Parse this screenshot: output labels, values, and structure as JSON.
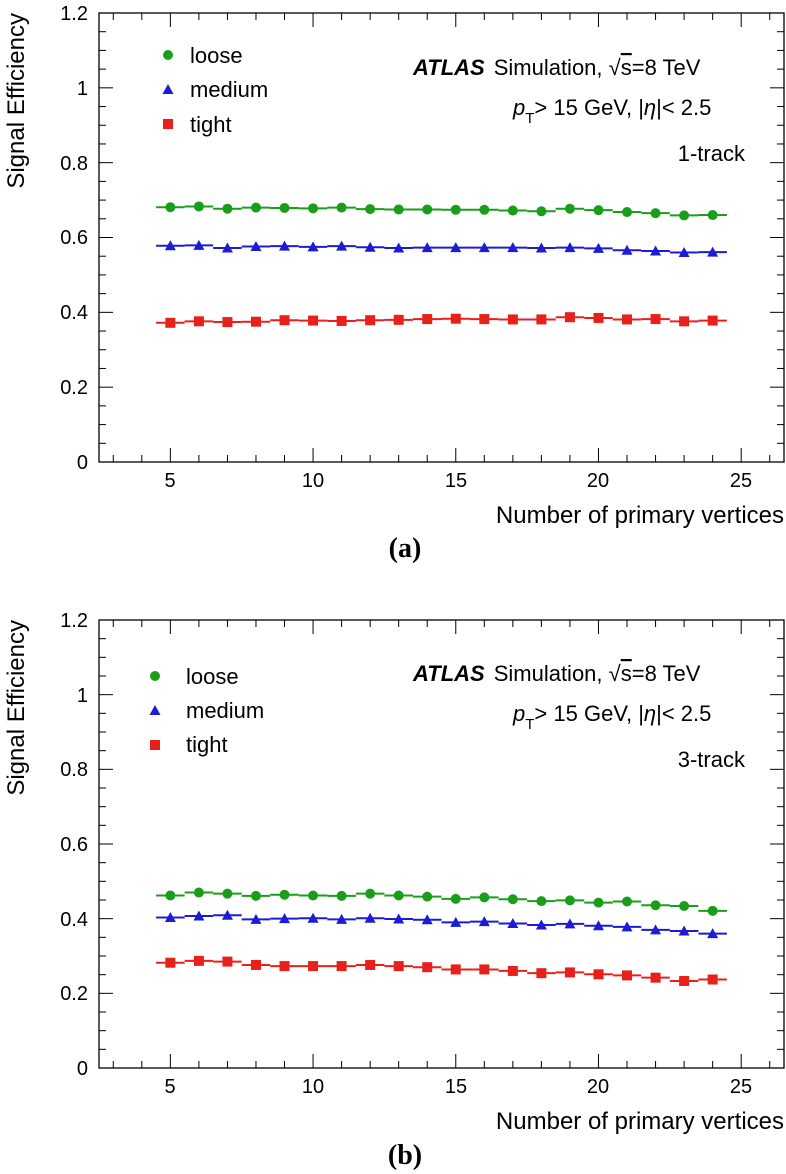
{
  "colors": {
    "loose": "#1a9e1a",
    "medium": "#1c1cd4",
    "tight": "#e8201c",
    "axis": "#000000"
  },
  "chart_data": [
    {
      "type": "line",
      "panel_label": "(a)",
      "xlabel": "Number of primary vertices",
      "ylabel": "Signal Efficiency",
      "xlim": [
        2.5,
        26.5
      ],
      "ylim": [
        0,
        1.2
      ],
      "xticks": [
        "5",
        "10",
        "15",
        "20",
        "25"
      ],
      "yticks": [
        "0",
        "0.2",
        "0.4",
        "0.6",
        "0.8",
        "1",
        "1.2"
      ],
      "annotation": {
        "experiment": "ATLAS",
        "simulation": "Simulation, ",
        "sqrt_s": "s",
        "energy": "=8 TeV",
        "pt_symbol": "p",
        "pt_subscript": "T",
        "cut": "> 15 GeV, |",
        "eta": "η",
        "eta_cut": "|< 2.5",
        "category": "1-track"
      },
      "x": [
        5,
        6,
        7,
        8,
        9,
        10,
        11,
        12,
        13,
        14,
        15,
        16,
        17,
        18,
        19,
        20,
        21,
        22,
        23,
        24
      ],
      "series": [
        {
          "name": "loose",
          "marker": "circle",
          "values": [
            0.681,
            0.683,
            0.677,
            0.68,
            0.679,
            0.678,
            0.68,
            0.676,
            0.675,
            0.675,
            0.674,
            0.674,
            0.672,
            0.67,
            0.677,
            0.673,
            0.668,
            0.665,
            0.659,
            0.66
          ]
        },
        {
          "name": "medium",
          "marker": "triangle",
          "values": [
            0.578,
            0.579,
            0.572,
            0.576,
            0.577,
            0.575,
            0.577,
            0.574,
            0.572,
            0.573,
            0.573,
            0.573,
            0.573,
            0.572,
            0.573,
            0.571,
            0.566,
            0.564,
            0.56,
            0.561
          ]
        },
        {
          "name": "tight",
          "marker": "square",
          "values": [
            0.372,
            0.376,
            0.374,
            0.375,
            0.379,
            0.378,
            0.377,
            0.379,
            0.38,
            0.382,
            0.383,
            0.382,
            0.381,
            0.381,
            0.387,
            0.385,
            0.381,
            0.382,
            0.376,
            0.378
          ]
        }
      ]
    },
    {
      "type": "line",
      "panel_label": "(b)",
      "xlabel": "Number of primary vertices",
      "ylabel": "Signal Efficiency",
      "xlim": [
        2.5,
        26.5
      ],
      "ylim": [
        0,
        1.2
      ],
      "xticks": [
        "5",
        "10",
        "15",
        "20",
        "25"
      ],
      "yticks": [
        "0",
        "0.2",
        "0.4",
        "0.6",
        "0.8",
        "1",
        "1.2"
      ],
      "annotation": {
        "experiment": "ATLAS",
        "simulation": "Simulation, ",
        "sqrt_s": "s",
        "energy": "=8 TeV",
        "pt_symbol": "p",
        "pt_subscript": "T",
        "cut": "> 15 GeV, |",
        "eta": "η",
        "eta_cut": "|< 2.5",
        "category": "3-track"
      },
      "x": [
        5,
        6,
        7,
        8,
        9,
        10,
        11,
        12,
        13,
        14,
        15,
        16,
        17,
        18,
        19,
        20,
        21,
        22,
        23,
        24
      ],
      "series": [
        {
          "name": "loose",
          "marker": "circle",
          "values": [
            0.462,
            0.47,
            0.467,
            0.461,
            0.464,
            0.462,
            0.461,
            0.467,
            0.462,
            0.459,
            0.453,
            0.457,
            0.452,
            0.447,
            0.449,
            0.443,
            0.446,
            0.436,
            0.434,
            0.421
          ]
        },
        {
          "name": "medium",
          "marker": "triangle",
          "values": [
            0.403,
            0.407,
            0.409,
            0.398,
            0.4,
            0.401,
            0.398,
            0.401,
            0.399,
            0.397,
            0.39,
            0.392,
            0.387,
            0.383,
            0.386,
            0.381,
            0.378,
            0.37,
            0.367,
            0.36
          ]
        },
        {
          "name": "tight",
          "marker": "square",
          "values": [
            0.282,
            0.287,
            0.285,
            0.276,
            0.273,
            0.273,
            0.273,
            0.276,
            0.273,
            0.27,
            0.264,
            0.264,
            0.26,
            0.254,
            0.256,
            0.251,
            0.248,
            0.242,
            0.233,
            0.237
          ]
        }
      ]
    }
  ]
}
